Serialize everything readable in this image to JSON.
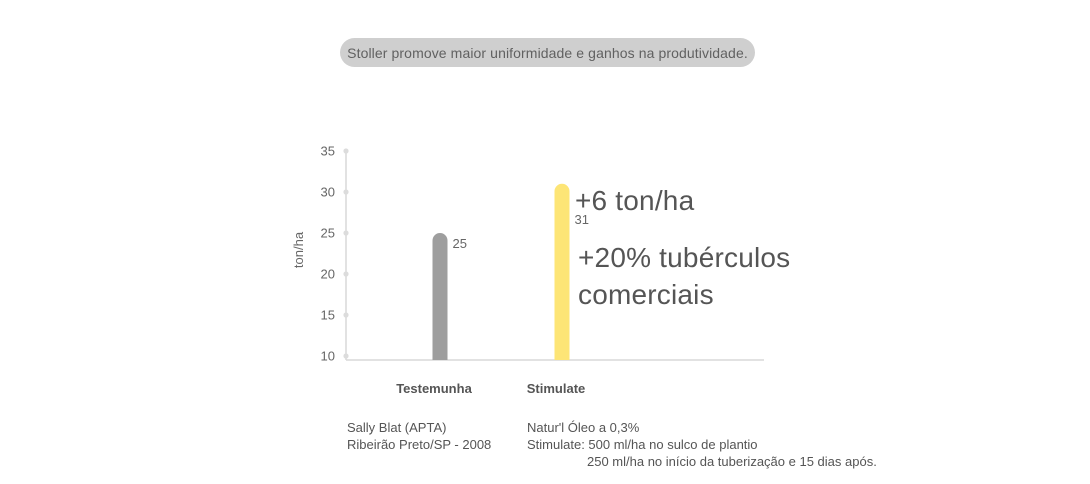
{
  "header": {
    "title": "Stoller promove maior uniformidade e ganhos na produtividade."
  },
  "chart_data": {
    "type": "bar",
    "ylabel": "ton/ha",
    "ylim": [
      10,
      35
    ],
    "yticks": [
      10,
      15,
      20,
      25,
      30,
      35
    ],
    "categories": [
      "Testemunha",
      "Stimulate"
    ],
    "values": [
      25,
      31
    ],
    "bar_colors": [
      "#9e9e9e",
      "#fde576"
    ],
    "data_labels": [
      "25",
      "31"
    ]
  },
  "annotations": {
    "gain_tons": "+6 ton/ha",
    "gain_line1": "+20% tubérculos",
    "gain_line2": "comerciais"
  },
  "notes": {
    "source_line1": "Sally Blat (APTA)",
    "source_line2": "Ribeirão Preto/SP - 2008",
    "treatment_line1": "Natur'l Óleo a 0,3%",
    "treatment_line2": "Stimulate: 500 ml/ha no sulco de plantio",
    "treatment_line3": "250 ml/ha no início da tuberização e 15 dias após."
  }
}
